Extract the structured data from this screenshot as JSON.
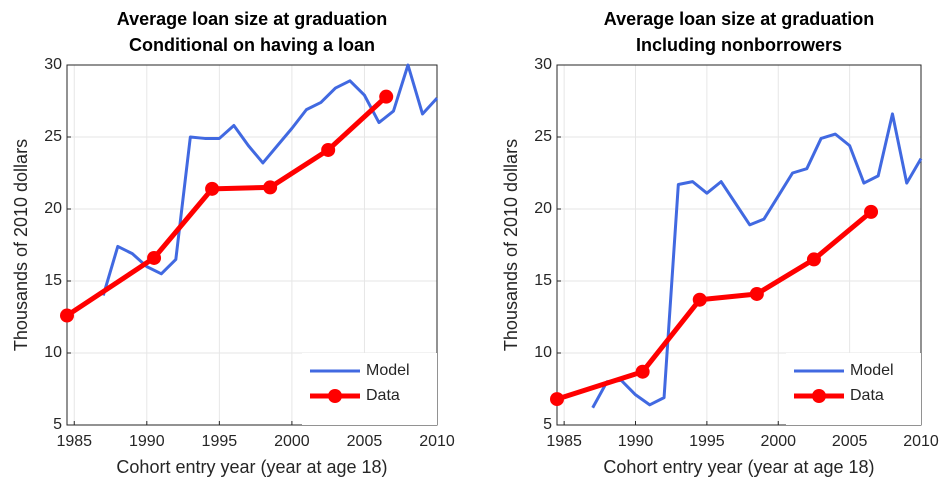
{
  "chart_data": [
    {
      "type": "line",
      "title": "Average loan size at graduation",
      "subtitle": "Conditional on having a loan",
      "xlabel": "Cohort entry year (year at age 18)",
      "ylabel": "Thousands of 2010 dollars",
      "xlim": [
        1984.5,
        2010
      ],
      "ylim": [
        5,
        30
      ],
      "xticks": [
        1985,
        1990,
        1995,
        2000,
        2005,
        2010
      ],
      "yticks": [
        5,
        10,
        15,
        20,
        25,
        30
      ],
      "grid": true,
      "legend": "lower right",
      "series": [
        {
          "name": "Model",
          "color": "#4169e1",
          "x": [
            1987,
            1988,
            1989,
            1990,
            1991,
            1992,
            1993,
            1994,
            1995,
            1996,
            1997,
            1998,
            1999,
            2000,
            2001,
            2002,
            2003,
            2004,
            2005,
            2006,
            2007,
            2008,
            2009,
            2010
          ],
          "values": [
            14.0,
            17.4,
            16.9,
            16.0,
            15.5,
            16.5,
            25.0,
            24.9,
            24.9,
            25.8,
            24.4,
            23.2,
            24.4,
            25.6,
            26.9,
            27.4,
            28.4,
            28.9,
            27.9,
            26.0,
            26.8,
            30.0,
            26.6,
            27.7
          ]
        },
        {
          "name": "Data",
          "color": "#ff0000",
          "marker": "o",
          "x": [
            1984.5,
            1990.5,
            1994.5,
            1998.5,
            2002.5,
            2006.5
          ],
          "values": [
            12.6,
            16.6,
            21.4,
            21.5,
            24.1,
            27.8
          ]
        }
      ]
    },
    {
      "type": "line",
      "title": "Average loan size at graduation",
      "subtitle": "Including nonborrowers",
      "xlabel": "Cohort entry year (year at age 18)",
      "ylabel": "Thousands of 2010 dollars",
      "xlim": [
        1984.5,
        2010
      ],
      "ylim": [
        5,
        30
      ],
      "xticks": [
        1985,
        1990,
        1995,
        2000,
        2005,
        2010
      ],
      "yticks": [
        5,
        10,
        15,
        20,
        25,
        30
      ],
      "grid": true,
      "legend": "lower right",
      "series": [
        {
          "name": "Model",
          "color": "#4169e1",
          "x": [
            1987,
            1988,
            1989,
            1990,
            1991,
            1992,
            1993,
            1994,
            1995,
            1996,
            1997,
            1998,
            1999,
            2000,
            2001,
            2002,
            2003,
            2004,
            2005,
            2006,
            2007,
            2008,
            2009,
            2010
          ],
          "values": [
            6.2,
            8.0,
            8.1,
            7.1,
            6.4,
            6.9,
            21.7,
            21.9,
            21.1,
            21.9,
            20.4,
            18.9,
            19.3,
            20.9,
            22.5,
            22.8,
            24.9,
            25.2,
            24.4,
            21.8,
            22.3,
            26.6,
            21.8,
            23.5
          ]
        },
        {
          "name": "Data",
          "color": "#ff0000",
          "marker": "o",
          "x": [
            1984.5,
            1990.5,
            1994.5,
            1998.5,
            2002.5,
            2006.5
          ],
          "values": [
            6.8,
            8.7,
            13.7,
            14.1,
            16.5,
            19.8
          ]
        }
      ]
    }
  ]
}
